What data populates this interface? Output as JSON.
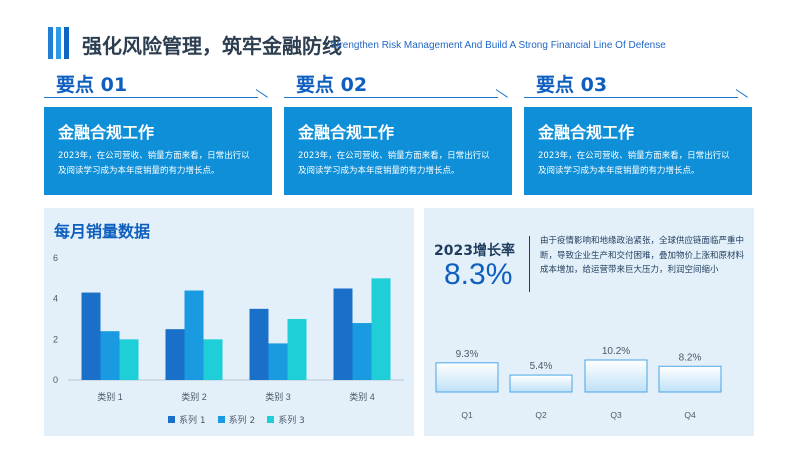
{
  "header": {
    "title": "强化风险管理，筑牢金融防线",
    "subtitle": "Strengthen Risk Management And Build A Strong Financial Line Of Defense"
  },
  "points": [
    {
      "heading": "要点 01",
      "card_title": "金融合规工作",
      "card_text": "2023年，在公司营收、销量方面来看，日常出行以及阅读学习成为本年度销量的有力增长点。"
    },
    {
      "heading": "要点 02",
      "card_title": "金融合规工作",
      "card_text": "2023年，在公司营收、销量方面来看，日常出行以及阅读学习成为本年度销量的有力增长点。"
    },
    {
      "heading": "要点 03",
      "card_title": "金融合规工作",
      "card_text": "2023年，在公司营收、销量方面来看，日常出行以及阅读学习成为本年度销量的有力增长点。"
    }
  ],
  "sales_panel": {
    "title": "每月销量数据"
  },
  "growth_panel": {
    "label": "2023增长率",
    "value": "8.3%",
    "description": "由于疫情影响和地缘政治紧张，全球供应链面临严重中断，导致企业生产和交付困难，叠加物价上涨和原材料成本增加，给运营带来巨大压力，利润空间缩小"
  },
  "colors": {
    "series1": "#1a6fc9",
    "series2": "#1a9ae0",
    "series3": "#1ecfd8",
    "card": "#0e8fd8",
    "accent": "#0f5fbf"
  },
  "chart_data": [
    {
      "type": "bar",
      "title": "每月销量数据",
      "categories": [
        "类别 1",
        "类别 2",
        "类别 3",
        "类别 4"
      ],
      "series": [
        {
          "name": "系列 1",
          "values": [
            4.3,
            2.5,
            3.5,
            4.5
          ]
        },
        {
          "name": "系列 2",
          "values": [
            2.4,
            4.4,
            1.8,
            2.8
          ]
        },
        {
          "name": "系列 3",
          "values": [
            2,
            2,
            3,
            5
          ]
        }
      ],
      "ylim": [
        0,
        6
      ],
      "yticks": [
        0,
        2,
        4,
        6
      ],
      "grid": false,
      "legend": "bottom"
    },
    {
      "type": "bar",
      "categories": [
        "Q1",
        "Q2",
        "Q3",
        "Q4"
      ],
      "values": [
        9.3,
        5.4,
        10.2,
        8.2
      ],
      "value_labels": [
        "9.3%",
        "5.4%",
        "10.2%",
        "8.2%"
      ],
      "ylim": [
        0,
        10.2
      ]
    }
  ]
}
